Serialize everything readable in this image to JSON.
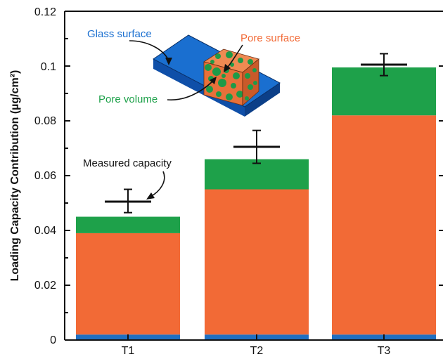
{
  "chart_data": {
    "type": "bar",
    "stacked": true,
    "categories": [
      "T1",
      "T2",
      "T3"
    ],
    "series": [
      {
        "name": "Glass surface",
        "color": "#1f6fc1",
        "values": [
          0.002,
          0.002,
          0.002
        ]
      },
      {
        "name": "Pore surface",
        "color": "#f26a36",
        "values": [
          0.037,
          0.053,
          0.08
        ]
      },
      {
        "name": "Pore volume",
        "color": "#1ea14a",
        "values": [
          0.006,
          0.011,
          0.0175
        ]
      }
    ],
    "measured": {
      "label": "Measured capacity",
      "values": [
        0.0505,
        0.0705,
        0.1005
      ],
      "err_low": [
        0.0465,
        0.0645,
        0.0965
      ],
      "err_high": [
        0.055,
        0.0765,
        0.1045
      ]
    },
    "ylabel": "Loading Capacity Contribution (µg/cm²)",
    "ylim": [
      0,
      0.12
    ],
    "yticks": [
      "0",
      "0.02",
      "0.04",
      "0.06",
      "0.08",
      "0.1",
      "0.12"
    ],
    "grid": false,
    "inset_labels": {
      "glass": "Glass surface",
      "pore_surface": "Pore surface",
      "pore_volume": "Pore volume"
    }
  }
}
